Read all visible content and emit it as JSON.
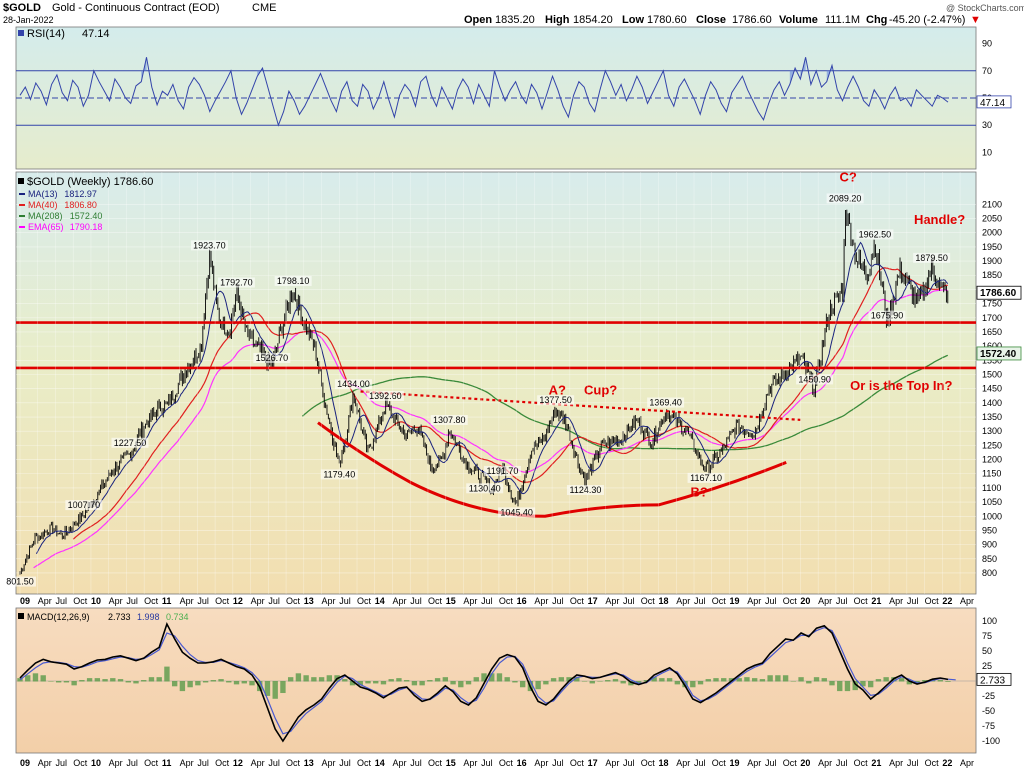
{
  "header": {
    "symbol": "$GOLD",
    "name": "Gold - Continuous Contract (EOD)",
    "exchange": "CME",
    "date": "28-Jan-2022",
    "open_label": "Open",
    "open": "1835.20",
    "high_label": "High",
    "high": "1854.20",
    "low_label": "Low",
    "low": "1780.60",
    "close_label": "Close",
    "close": "1786.60",
    "volume_label": "Volume",
    "volume": "111.1M",
    "chg_label": "Chg",
    "chg": "-45.20 (-2.47%)",
    "chg_arrow": "▼",
    "copyright": "@ StockCharts.com"
  },
  "chart_data": [
    {
      "type": "line",
      "panel": "rsi",
      "legend_label": "RSI(14)",
      "legend_value": "47.14",
      "yticks": [
        90,
        70,
        50,
        30,
        10
      ],
      "ylim": [
        0,
        100
      ],
      "reference_lines": [
        70,
        50,
        30
      ],
      "last_value": "47.14",
      "series": [
        {
          "values": [
            52,
            58,
            49,
            61,
            55,
            45,
            60,
            67,
            54,
            48,
            63,
            58,
            44,
            52,
            70,
            62,
            55,
            48,
            64,
            58,
            50,
            46,
            59,
            62,
            80,
            58,
            45,
            55,
            52,
            60,
            48,
            42,
            58,
            65,
            60,
            52,
            40,
            48,
            55,
            62,
            70,
            50,
            38,
            46,
            56,
            66,
            72,
            58,
            44,
            30,
            40,
            55,
            48,
            38,
            44,
            52,
            60,
            68,
            58,
            48,
            40,
            55,
            62,
            48,
            44,
            60,
            55,
            42,
            50,
            62,
            48,
            36,
            52,
            60,
            55,
            44,
            62,
            66,
            52,
            44,
            58,
            50,
            42,
            56,
            64,
            58,
            46,
            60,
            52,
            44,
            70,
            58,
            48,
            56,
            62,
            52,
            46,
            60,
            54,
            42,
            54,
            66,
            56,
            44,
            36,
            52,
            62,
            58,
            46,
            40,
            56,
            70,
            62,
            52,
            60,
            48,
            56,
            66,
            58,
            46,
            54,
            62,
            70,
            52,
            44,
            58,
            64,
            56,
            48,
            38,
            52,
            62,
            56,
            46,
            40,
            54,
            60,
            66,
            56,
            48,
            40,
            34,
            46,
            56,
            62,
            52,
            60,
            72,
            64,
            80,
            60,
            70,
            58,
            62,
            74,
            56,
            48,
            58,
            66,
            58,
            48,
            44,
            56,
            50,
            42,
            52,
            58,
            48,
            50,
            44,
            56,
            52,
            48,
            44,
            52,
            50,
            47
          ]
        }
      ]
    },
    {
      "type": "line",
      "panel": "price",
      "legend_title": "$GOLD (Weekly) 1786.60",
      "legend": [
        {
          "name": "MA(13)",
          "value": "1812.97",
          "color": "#1a237e"
        },
        {
          "name": "MA(40)",
          "value": "1806.80",
          "color": "#e02020"
        },
        {
          "name": "MA(208)",
          "value": "1572.40",
          "color": "#2e7d32"
        },
        {
          "name": "EMA(65)",
          "value": "1790.18",
          "color": "#ff00ff"
        }
      ],
      "yticks": [
        2100,
        2050,
        2000,
        1950,
        1900,
        1850,
        1800,
        1750,
        1700,
        1650,
        1600,
        1550,
        1500,
        1450,
        1400,
        1350,
        1300,
        1250,
        1200,
        1150,
        1100,
        1050,
        1000,
        950,
        900,
        850,
        800
      ],
      "ylim": [
        740,
        2200
      ],
      "last_price": "1786.60",
      "ma208_last": "1572.40",
      "x_start": 2009.0,
      "x_end": 2022.08,
      "price_anchors": [
        [
          2009.0,
          801.5
        ],
        [
          2009.2,
          920
        ],
        [
          2009.45,
          960
        ],
        [
          2009.6,
          930
        ],
        [
          2009.9,
          1007.7
        ],
        [
          2010.1,
          1080
        ],
        [
          2010.3,
          1160
        ],
        [
          2010.55,
          1220
        ],
        [
          2010.7,
          1300
        ],
        [
          2010.95,
          1380
        ],
        [
          2011.1,
          1400
        ],
        [
          2011.3,
          1500
        ],
        [
          2011.55,
          1600
        ],
        [
          2011.67,
          1923.7
        ],
        [
          2011.8,
          1700
        ],
        [
          2011.95,
          1650
        ],
        [
          2012.05,
          1792.7
        ],
        [
          2012.2,
          1640
        ],
        [
          2012.4,
          1580
        ],
        [
          2012.55,
          1526.7
        ],
        [
          2012.7,
          1680
        ],
        [
          2012.85,
          1798.1
        ],
        [
          2013.0,
          1680
        ],
        [
          2013.15,
          1600
        ],
        [
          2013.3,
          1400
        ],
        [
          2013.5,
          1179.4
        ],
        [
          2013.6,
          1300
        ],
        [
          2013.7,
          1434
        ],
        [
          2013.9,
          1220
        ],
        [
          2014.15,
          1392.6
        ],
        [
          2014.45,
          1280
        ],
        [
          2014.6,
          1320
        ],
        [
          2014.8,
          1170
        ],
        [
          2014.95,
          1200
        ],
        [
          2015.05,
          1307.8
        ],
        [
          2015.3,
          1180
        ],
        [
          2015.55,
          1130.4
        ],
        [
          2015.65,
          1090
        ],
        [
          2015.8,
          1180
        ],
        [
          2015.95,
          1060
        ],
        [
          2016.0,
          1045.4
        ],
        [
          2016.2,
          1230
        ],
        [
          2016.4,
          1280
        ],
        [
          2016.55,
          1377.5
        ],
        [
          2016.7,
          1330
        ],
        [
          2016.85,
          1200
        ],
        [
          2016.97,
          1124.3
        ],
        [
          2017.2,
          1250
        ],
        [
          2017.45,
          1270
        ],
        [
          2017.7,
          1340
        ],
        [
          2017.9,
          1260
        ],
        [
          2018.1,
          1369.4
        ],
        [
          2018.4,
          1300
        ],
        [
          2018.62,
          1180
        ],
        [
          2018.67,
          1167.1
        ],
        [
          2018.9,
          1230
        ],
        [
          2019.1,
          1320
        ],
        [
          2019.35,
          1290
        ],
        [
          2019.55,
          1450
        ],
        [
          2019.75,
          1500
        ],
        [
          2020.0,
          1560
        ],
        [
          2020.2,
          1450.9
        ],
        [
          2020.4,
          1720
        ],
        [
          2020.6,
          1800
        ],
        [
          2020.63,
          2089.2
        ],
        [
          2020.8,
          1900
        ],
        [
          2020.95,
          1860
        ],
        [
          2021.05,
          1962.5
        ],
        [
          2021.2,
          1730
        ],
        [
          2021.22,
          1675.9
        ],
        [
          2021.4,
          1870
        ],
        [
          2021.65,
          1750
        ],
        [
          2021.75,
          1800
        ],
        [
          2021.85,
          1879.5
        ],
        [
          2022.0,
          1790
        ],
        [
          2022.08,
          1786.6
        ]
      ],
      "annotations": [
        {
          "text": "801.50",
          "x": 2009.0,
          "y": 801.5
        },
        {
          "text": "1007.70",
          "x": 2009.9,
          "y": 1007.7
        },
        {
          "text": "1227.50",
          "x": 2010.55,
          "y": 1227.5
        },
        {
          "text": "1923.70",
          "x": 2011.67,
          "y": 1923.7
        },
        {
          "text": "1792.70",
          "x": 2012.05,
          "y": 1792.7
        },
        {
          "text": "1798.10",
          "x": 2012.85,
          "y": 1798.1
        },
        {
          "text": "1526.70",
          "x": 2012.55,
          "y": 1526.7
        },
        {
          "text": "1434.00",
          "x": 2013.7,
          "y": 1434.0
        },
        {
          "text": "1392.60",
          "x": 2014.15,
          "y": 1392.6
        },
        {
          "text": "1179.40",
          "x": 2013.5,
          "y": 1179.4
        },
        {
          "text": "1307.80",
          "x": 2015.05,
          "y": 1307.8
        },
        {
          "text": "1130.40",
          "x": 2015.55,
          "y": 1130.4
        },
        {
          "text": "1191.70",
          "x": 2015.8,
          "y": 1191.7
        },
        {
          "text": "1045.40",
          "x": 2016.0,
          "y": 1045.4
        },
        {
          "text": "1377.50",
          "x": 2016.55,
          "y": 1377.5
        },
        {
          "text": "1124.30",
          "x": 2016.97,
          "y": 1124.3
        },
        {
          "text": "1369.40",
          "x": 2018.1,
          "y": 1369.4
        },
        {
          "text": "1167.10",
          "x": 2018.67,
          "y": 1167.1
        },
        {
          "text": "1450.90",
          "x": 2020.2,
          "y": 1450.9
        },
        {
          "text": "2089.20",
          "x": 2020.63,
          "y": 2089.2
        },
        {
          "text": "1962.50",
          "x": 2021.05,
          "y": 1962.5
        },
        {
          "text": "1879.50",
          "x": 2021.85,
          "y": 1879.5
        },
        {
          "text": "1675.90",
          "x": 2021.22,
          "y": 1675.9
        }
      ],
      "commentary": [
        {
          "text": "C?",
          "x": 2020.55,
          "y": 2180
        },
        {
          "text": "Handle?",
          "x": 2021.6,
          "y": 2030
        },
        {
          "text": "A?",
          "x": 2016.45,
          "y": 1430
        },
        {
          "text": "Cup?",
          "x": 2016.95,
          "y": 1430
        },
        {
          "text": "B?",
          "x": 2018.45,
          "y": 1070
        },
        {
          "text": "Or is the Top In?",
          "x": 2020.7,
          "y": 1445
        }
      ],
      "horizontal_lines": [
        {
          "y": 1683,
          "color": "#e00000"
        },
        {
          "y": 1523,
          "color": "#e00000"
        }
      ],
      "cup_curve": [
        [
          2013.2,
          1330
        ],
        [
          2014.5,
          1120
        ],
        [
          2016.4,
          1000
        ],
        [
          2018.0,
          1040
        ],
        [
          2019.8,
          1190
        ]
      ],
      "dotted_trendline": [
        [
          2013.8,
          1440
        ],
        [
          2020.0,
          1340
        ]
      ]
    },
    {
      "type": "line",
      "panel": "macd",
      "legend_label": "MACD(12,26,9)",
      "legend_macd": "2.733",
      "legend_signal": "1.998",
      "legend_hist": "0.734",
      "yticks": [
        100,
        75,
        50,
        25,
        0,
        -25,
        -50,
        -75,
        -100
      ],
      "ylim": [
        -115,
        115
      ],
      "last_value": "2.733",
      "series": [
        {
          "name": "MACD",
          "values": [
            5,
            18,
            30,
            36,
            32,
            30,
            28,
            20,
            24,
            30,
            35,
            36,
            40,
            42,
            38,
            34,
            38,
            48,
            56,
            95,
            70,
            48,
            38,
            30,
            30,
            32,
            36,
            30,
            24,
            20,
            10,
            -10,
            -45,
            -80,
            -100,
            -80,
            -60,
            -48,
            -40,
            -30,
            -12,
            4,
            10,
            0,
            -10,
            -14,
            -20,
            -28,
            -20,
            -12,
            -10,
            -24,
            -34,
            -30,
            -20,
            -8,
            -18,
            -34,
            -40,
            -28,
            -4,
            20,
            38,
            44,
            40,
            22,
            -10,
            -34,
            -40,
            -30,
            -14,
            0,
            10,
            8,
            4,
            6,
            10,
            14,
            8,
            -2,
            -6,
            -2,
            10,
            16,
            22,
            12,
            -8,
            -30,
            -36,
            -28,
            -20,
            -10,
            0,
            10,
            20,
            26,
            30,
            46,
            58,
            70,
            68,
            80,
            74,
            88,
            92,
            80,
            50,
            20,
            -5,
            -15,
            -30,
            -20,
            -8,
            4,
            10,
            0,
            -5,
            -2,
            3,
            5,
            2.7
          ]
        }
      ],
      "signal_series": [
        {
          "name": "Signal",
          "values": [
            2,
            12,
            22,
            30,
            32,
            31,
            29,
            24,
            23,
            27,
            32,
            34,
            37,
            40,
            39,
            36,
            37,
            44,
            52,
            80,
            75,
            58,
            44,
            34,
            31,
            31,
            34,
            31,
            27,
            22,
            14,
            0,
            -30,
            -62,
            -88,
            -84,
            -68,
            -54,
            -44,
            -34,
            -18,
            -2,
            8,
            4,
            -6,
            -12,
            -18,
            -25,
            -22,
            -15,
            -11,
            -20,
            -30,
            -31,
            -23,
            -12,
            -15,
            -28,
            -37,
            -32,
            -12,
            12,
            30,
            40,
            41,
            28,
            0,
            -26,
            -37,
            -33,
            -18,
            -4,
            6,
            8,
            6,
            6,
            9,
            12,
            10,
            2,
            -4,
            -3,
            6,
            13,
            19,
            15,
            -2,
            -24,
            -33,
            -30,
            -23,
            -13,
            -3,
            7,
            16,
            23,
            28,
            40,
            52,
            64,
            68,
            76,
            76,
            84,
            89,
            84,
            60,
            30,
            4,
            -10,
            -24,
            -22,
            -12,
            0,
            7,
            3,
            -3,
            -3,
            1,
            4,
            3,
            2
          ]
        }
      ]
    }
  ],
  "x_axis": {
    "labels": [
      "09",
      "Apr",
      "Jul",
      "Oct",
      "10",
      "Apr",
      "Jul",
      "Oct",
      "11",
      "Apr",
      "Jul",
      "Oct",
      "12",
      "Apr",
      "Jul",
      "Oct",
      "13",
      "Apr",
      "Jul",
      "Oct",
      "14",
      "Apr",
      "Jul",
      "Oct",
      "15",
      "Apr",
      "Jul",
      "Oct",
      "16",
      "Apr",
      "Jul",
      "Oct",
      "17",
      "Apr",
      "Jul",
      "Oct",
      "18",
      "Apr",
      "Jul",
      "Oct",
      "19",
      "Apr",
      "Jul",
      "Oct",
      "20",
      "Apr",
      "Jul",
      "Oct",
      "21",
      "Apr",
      "Jul",
      "Oct",
      "22",
      "Apr"
    ]
  }
}
